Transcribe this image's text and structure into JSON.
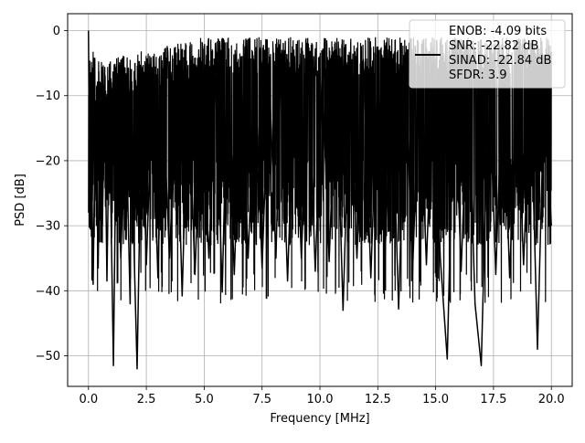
{
  "chart_data": {
    "type": "line",
    "title": "",
    "xlabel": "Frequency [MHz]",
    "ylabel": "PSD [dB]",
    "xlim": [
      -0.9,
      20.9
    ],
    "ylim": [
      -54.7,
      2.6
    ],
    "xticks": [
      0.0,
      2.5,
      5.0,
      7.5,
      10.0,
      12.5,
      15.0,
      17.5,
      20.0
    ],
    "xtick_labels": [
      "0.0",
      "2.5",
      "5.0",
      "7.5",
      "10.0",
      "12.5",
      "15.0",
      "17.5",
      "20.0"
    ],
    "yticks": [
      0,
      -10,
      -20,
      -30,
      -40,
      -50
    ],
    "ytick_labels": [
      "0",
      "−10",
      "−20",
      "−30",
      "−40",
      "−50"
    ],
    "grid": true,
    "legend_position": "upper right",
    "series": [
      {
        "color": "#000000",
        "x_range": [
          0.0,
          20.0
        ],
        "x": [
          0.0,
          0.05,
          0.1,
          0.2,
          0.3,
          0.42,
          0.5,
          0.6,
          0.7,
          0.8,
          0.9,
          1.08,
          1.2,
          1.4,
          1.6,
          1.8,
          1.85,
          2.0,
          2.1,
          2.3,
          2.5,
          2.75,
          3.0,
          3.2,
          3.5,
          3.8,
          4.05,
          4.3,
          4.6,
          4.9,
          5.2,
          5.5,
          5.78,
          6.0,
          6.3,
          6.6,
          6.9,
          7.2,
          7.5,
          7.8,
          8.1,
          8.3,
          8.6,
          8.9,
          9.2,
          9.5,
          9.8,
          10.1,
          10.4,
          10.7,
          11.0,
          11.3,
          11.6,
          11.9,
          12.2,
          12.5,
          12.8,
          13.1,
          13.4,
          13.7,
          14.0,
          14.3,
          14.6,
          14.9,
          15.2,
          15.5,
          15.8,
          16.1,
          16.4,
          16.7,
          16.97,
          17.3,
          17.6,
          17.9,
          18.2,
          18.5,
          18.8,
          19.1,
          19.4,
          19.7,
          20.0
        ],
        "y": [
          0.0,
          -28.0,
          -8.0,
          -39.0,
          -12.0,
          -36.5,
          -14.0,
          -30.0,
          -10.0,
          -38.5,
          -12.0,
          -51.5,
          -13.0,
          -35.0,
          -11.0,
          -42.0,
          -14.0,
          -38.0,
          -52.0,
          -11.0,
          -36.0,
          -10.0,
          -38.0,
          -8.5,
          -35.0,
          -9.0,
          -40.8,
          -7.5,
          -37.5,
          -8.0,
          -35.0,
          -7.0,
          -40.2,
          -6.5,
          -37.5,
          -6.0,
          -35.0,
          -6.0,
          -36.5,
          -6.2,
          -35.0,
          -5.8,
          -38.5,
          -6.5,
          -35.0,
          -6.0,
          -37.0,
          -6.5,
          -35.5,
          -6.0,
          -43.0,
          -6.5,
          -35.0,
          -6.0,
          -38.0,
          -6.2,
          -36.0,
          -6.5,
          -42.8,
          -6.0,
          -37.5,
          -6.0,
          -36.0,
          -5.5,
          -35.0,
          -50.5,
          -6.0,
          -37.0,
          -6.5,
          -42.0,
          -51.5,
          -6.0,
          -37.5,
          -6.5,
          -38.0,
          -7.0,
          -36.0,
          -7.5,
          -49.0,
          -8.0,
          -30.0
        ]
      }
    ],
    "legend": {
      "lines": [
        "ENOB: -4.09 bits",
        "SNR: -22.82 dB",
        "SINAD: -22.84 dB",
        "SFDR: 3.9"
      ]
    }
  }
}
